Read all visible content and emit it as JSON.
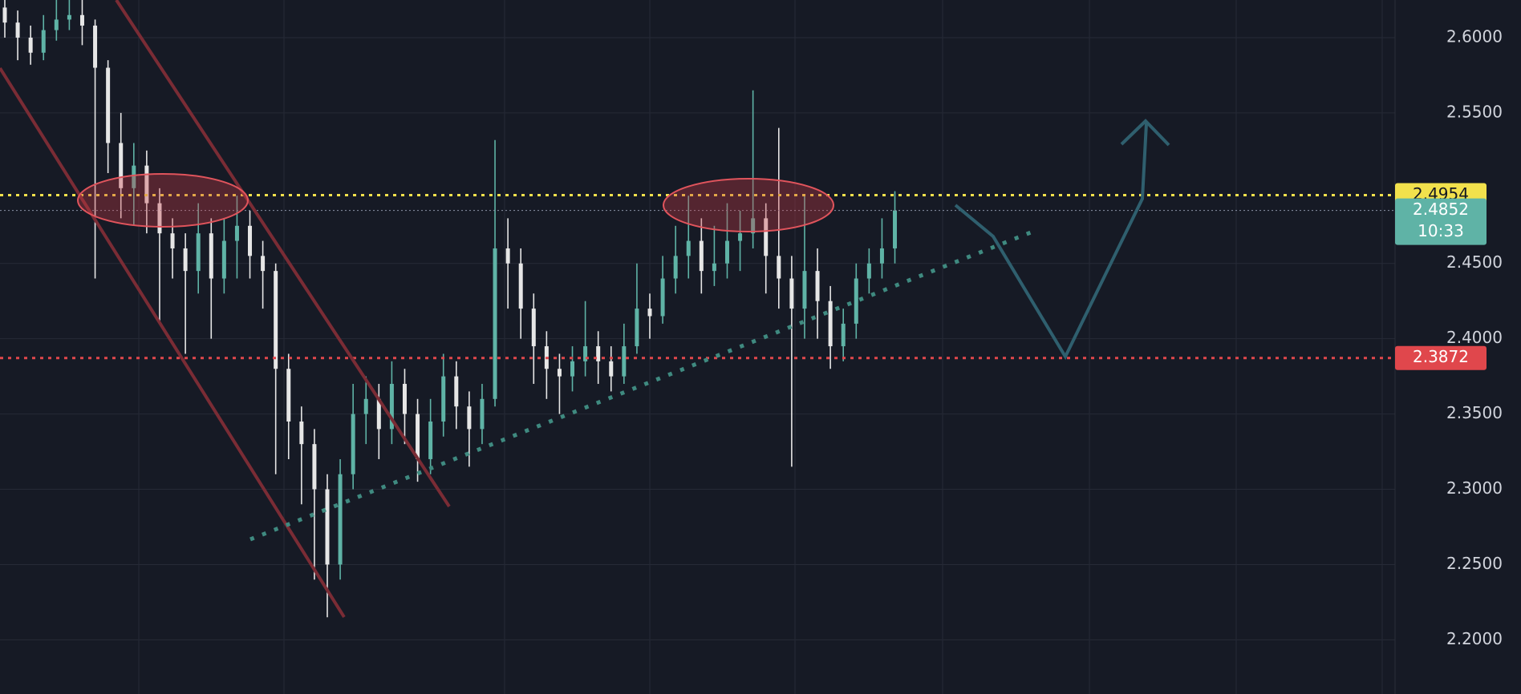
{
  "chart_data": {
    "type": "candlestick",
    "up_color": "#5fb3a6",
    "down_color": "#e6e6e6",
    "ylim": [
      2.164,
      2.625
    ],
    "yticks": [
      {
        "value": 2.2,
        "label": "2.2000"
      },
      {
        "value": 2.25,
        "label": "2.2500"
      },
      {
        "value": 2.3,
        "label": "2.3000"
      },
      {
        "value": 2.35,
        "label": "2.3500"
      },
      {
        "value": 2.4,
        "label": "2.4000"
      },
      {
        "value": 2.45,
        "label": "2.4500"
      },
      {
        "value": 2.55,
        "label": "2.5500"
      },
      {
        "value": 2.6,
        "label": "2.6000"
      }
    ],
    "grid": true,
    "open": [
      2.62,
      2.61,
      2.6,
      2.59,
      2.605,
      2.612,
      2.615,
      2.608,
      2.58,
      2.53,
      2.5,
      2.515,
      2.49,
      2.47,
      2.46,
      2.445,
      2.47,
      2.44,
      2.465,
      2.475,
      2.455,
      2.445,
      2.38,
      2.345,
      2.33,
      2.3,
      2.25,
      2.31,
      2.35,
      2.36,
      2.34,
      2.37,
      2.35,
      2.32,
      2.345,
      2.375,
      2.355,
      2.34,
      2.36,
      2.46,
      2.45,
      2.42,
      2.395,
      2.38,
      2.375,
      2.385,
      2.395,
      2.385,
      2.375,
      2.395,
      2.42,
      2.415,
      2.44,
      2.455,
      2.465,
      2.445,
      2.45,
      2.465,
      2.47,
      2.48,
      2.455,
      2.44,
      2.42,
      2.445,
      2.425,
      2.395,
      2.41,
      2.44,
      2.45,
      2.46
    ],
    "high": [
      2.63,
      2.618,
      2.608,
      2.615,
      2.625,
      2.628,
      2.625,
      2.612,
      2.585,
      2.55,
      2.53,
      2.525,
      2.5,
      2.48,
      2.47,
      2.49,
      2.48,
      2.48,
      2.495,
      2.485,
      2.465,
      2.45,
      2.39,
      2.355,
      2.34,
      2.31,
      2.32,
      2.37,
      2.375,
      2.37,
      2.385,
      2.38,
      2.36,
      2.36,
      2.39,
      2.385,
      2.365,
      2.37,
      2.532,
      2.48,
      2.46,
      2.43,
      2.405,
      2.39,
      2.395,
      2.425,
      2.405,
      2.395,
      2.41,
      2.45,
      2.43,
      2.455,
      2.475,
      2.495,
      2.48,
      2.475,
      2.49,
      2.485,
      2.565,
      2.49,
      2.54,
      2.455,
      2.495,
      2.46,
      2.435,
      2.42,
      2.45,
      2.46,
      2.48,
      2.498
    ],
    "low": [
      2.6,
      2.585,
      2.582,
      2.585,
      2.598,
      2.605,
      2.595,
      2.44,
      2.51,
      2.48,
      2.475,
      2.47,
      2.41,
      2.44,
      2.39,
      2.43,
      2.4,
      2.43,
      2.44,
      2.44,
      2.42,
      2.31,
      2.32,
      2.29,
      2.24,
      2.215,
      2.24,
      2.3,
      2.33,
      2.32,
      2.33,
      2.33,
      2.305,
      2.31,
      2.335,
      2.34,
      2.315,
      2.33,
      2.355,
      2.42,
      2.4,
      2.37,
      2.36,
      2.35,
      2.365,
      2.375,
      2.37,
      2.365,
      2.37,
      2.39,
      2.4,
      2.41,
      2.43,
      2.44,
      2.43,
      2.435,
      2.44,
      2.445,
      2.46,
      2.43,
      2.42,
      2.315,
      2.4,
      2.4,
      2.38,
      2.385,
      2.4,
      2.43,
      2.44,
      2.45
    ],
    "close": [
      2.61,
      2.6,
      2.59,
      2.605,
      2.612,
      2.615,
      2.608,
      2.58,
      2.53,
      2.5,
      2.515,
      2.49,
      2.47,
      2.46,
      2.445,
      2.47,
      2.44,
      2.465,
      2.475,
      2.455,
      2.445,
      2.38,
      2.345,
      2.33,
      2.3,
      2.25,
      2.31,
      2.35,
      2.36,
      2.34,
      2.37,
      2.35,
      2.32,
      2.345,
      2.375,
      2.355,
      2.34,
      2.36,
      2.46,
      2.45,
      2.42,
      2.395,
      2.38,
      2.375,
      2.385,
      2.395,
      2.385,
      2.375,
      2.395,
      2.42,
      2.415,
      2.44,
      2.455,
      2.465,
      2.445,
      2.45,
      2.465,
      2.47,
      2.48,
      2.455,
      2.44,
      2.42,
      2.445,
      2.425,
      2.395,
      2.41,
      2.44,
      2.45,
      2.46,
      2.4852
    ],
    "price_lines": [
      {
        "value": 2.4954,
        "color": "#f2e14c",
        "text_color": "#131722"
      },
      {
        "value": 2.4852,
        "color": "#5fb3a6",
        "text_color": "#ffffff",
        "sublabel": "10:33"
      },
      {
        "value": 2.3872,
        "color": "#e0474c",
        "text_color": "#ffffff"
      }
    ]
  }
}
